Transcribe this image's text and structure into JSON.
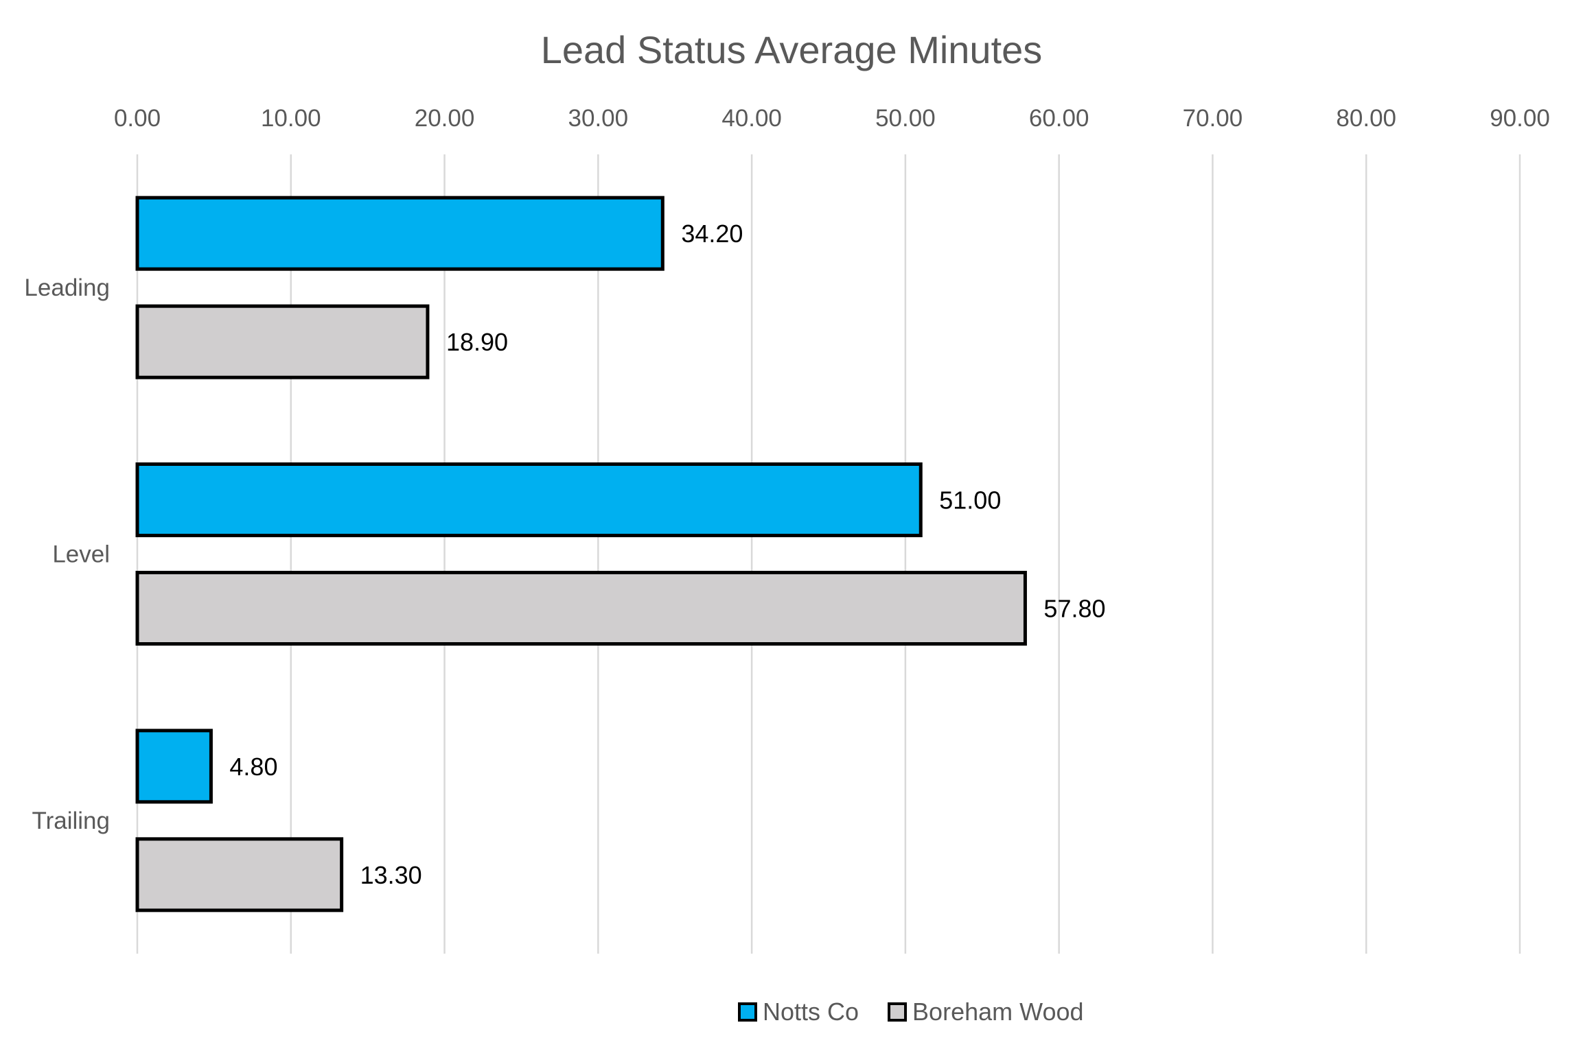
{
  "chart_data": {
    "type": "bar",
    "orientation": "horizontal",
    "title": "Lead Status Average Minutes",
    "xlabel": "",
    "ylabel": "",
    "categories": [
      "Leading",
      "Level",
      "Trailing"
    ],
    "series": [
      {
        "name": "Notts Co",
        "color": "#00b0f0",
        "values": [
          34.2,
          51.0,
          4.8
        ]
      },
      {
        "name": "Boreham Wood",
        "color": "#d0cecf",
        "values": [
          18.9,
          57.8,
          13.3
        ]
      }
    ],
    "value_labels": [
      [
        "34.20",
        "51.00",
        "4.80"
      ],
      [
        "18.90",
        "57.80",
        "13.30"
      ]
    ],
    "xlim": [
      0,
      90
    ],
    "x_ticks": [
      "0.00",
      "10.00",
      "20.00",
      "30.00",
      "40.00",
      "50.00",
      "60.00",
      "70.00",
      "80.00",
      "90.00"
    ],
    "x_axis_position": "top",
    "bar_outline_color": "#000000",
    "grid": true,
    "legend_position": "bottom"
  }
}
